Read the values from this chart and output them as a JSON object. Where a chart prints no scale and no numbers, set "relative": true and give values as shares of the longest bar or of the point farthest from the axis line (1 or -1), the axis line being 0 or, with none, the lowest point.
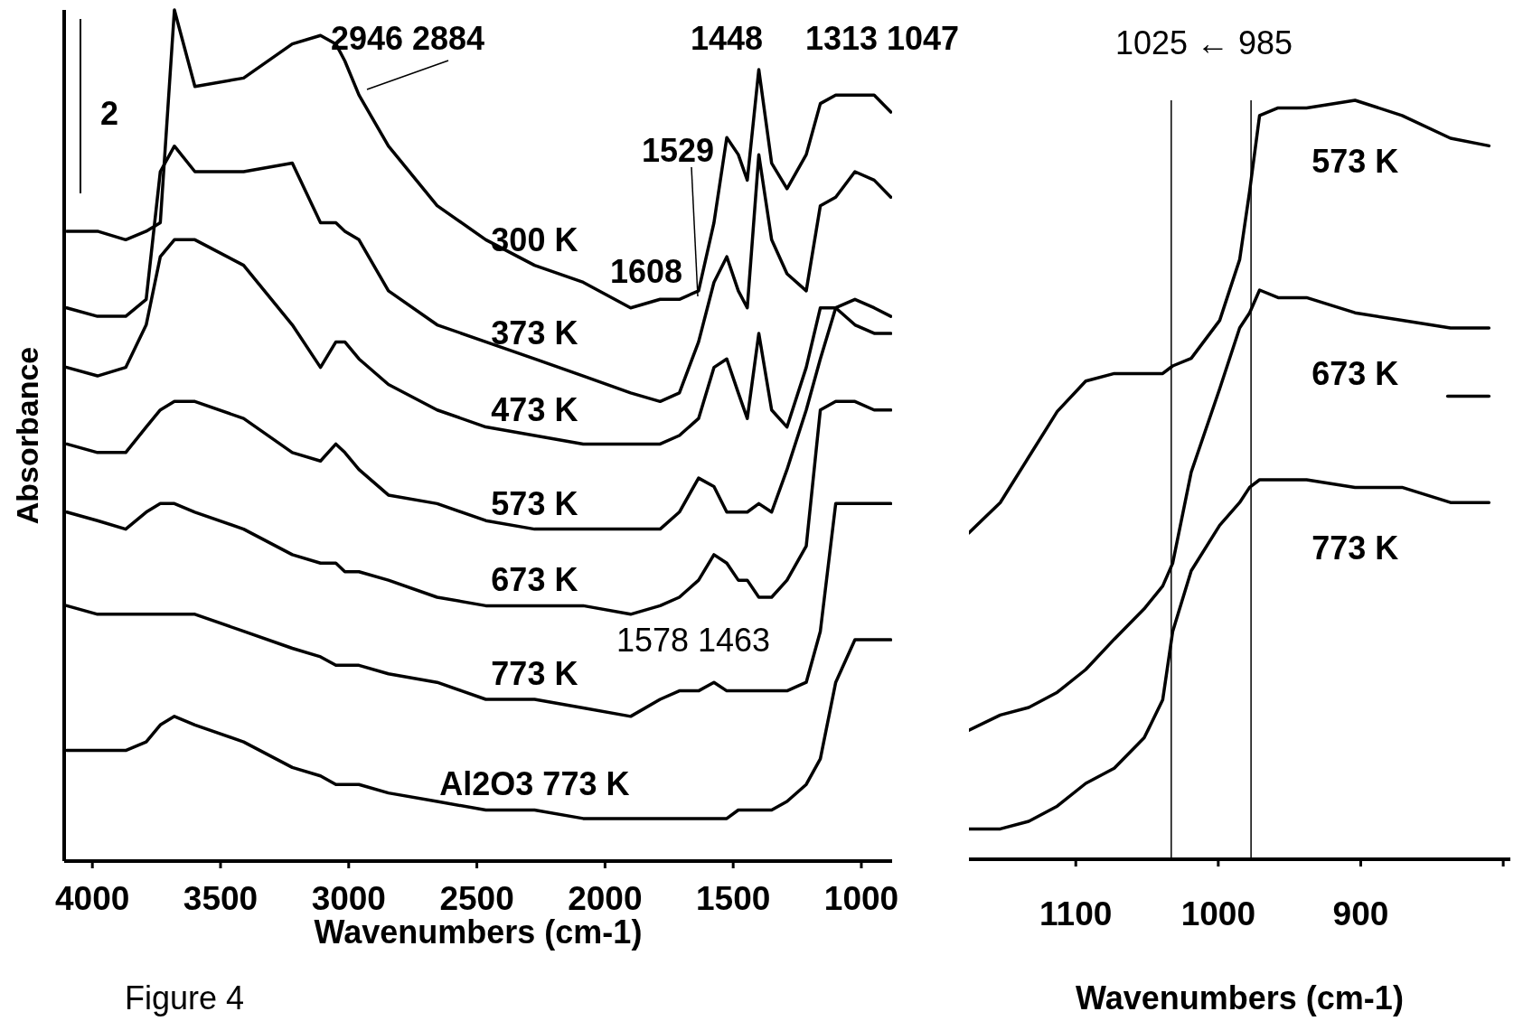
{
  "chart_data": [
    {
      "type": "line",
      "relative": true,
      "xlabel": "Wavenumbers (cm-1)",
      "ylabel": "Absorbance",
      "xlim": [
        4110,
        880
      ],
      "xticks": [
        4000,
        3500,
        3000,
        2500,
        2000,
        1500,
        1000
      ],
      "x": [
        4100,
        3980,
        3870,
        3790,
        3735,
        3680,
        3600,
        3410,
        3220,
        3110,
        3050,
        3015,
        2960,
        2845,
        2655,
        2465,
        2275,
        2085,
        1900,
        1785,
        1710,
        1635,
        1575,
        1525,
        1480,
        1445,
        1400,
        1350,
        1290,
        1215,
        1160,
        1100,
        1025,
        950,
        885
      ],
      "series": [
        {
          "name": "300 K",
          "color": "#000000",
          "values": [
            0.74,
            0.74,
            0.73,
            0.74,
            0.75,
            1,
            0.91,
            0.92,
            0.96,
            0.97,
            0.96,
            0.94,
            0.9,
            0.84,
            0.77,
            0.73,
            0.7,
            0.68,
            0.65,
            0.66,
            0.66,
            0.67,
            0.75,
            0.85,
            0.83,
            0.8,
            0.93,
            0.82,
            0.79,
            0.83,
            0.89,
            0.9,
            0.9,
            0.9,
            0.88
          ]
        },
        {
          "name": "373 K",
          "color": "#000000",
          "values": [
            0.65,
            0.64,
            0.64,
            0.66,
            0.81,
            0.84,
            0.81,
            0.81,
            0.82,
            0.75,
            0.75,
            0.74,
            0.73,
            0.67,
            0.63,
            0.61,
            0.59,
            0.57,
            0.55,
            0.54,
            0.55,
            0.61,
            0.68,
            0.71,
            0.67,
            0.65,
            0.83,
            0.73,
            0.69,
            0.67,
            0.77,
            0.78,
            0.81,
            0.8,
            0.78
          ]
        },
        {
          "name": "473 K",
          "color": "#000000",
          "values": [
            0.58,
            0.57,
            0.58,
            0.63,
            0.71,
            0.73,
            0.73,
            0.7,
            0.63,
            0.58,
            0.61,
            0.61,
            0.59,
            0.56,
            0.53,
            0.51,
            0.5,
            0.49,
            0.49,
            0.49,
            0.5,
            0.52,
            0.58,
            0.59,
            0.55,
            0.52,
            0.62,
            0.53,
            0.51,
            0.58,
            0.65,
            0.65,
            0.63,
            0.62,
            0.62
          ]
        },
        {
          "name": "573 K",
          "color": "#000000",
          "values": [
            0.49,
            0.48,
            0.48,
            0.51,
            0.53,
            0.54,
            0.54,
            0.52,
            0.48,
            0.47,
            0.49,
            0.48,
            0.46,
            0.43,
            0.42,
            0.4,
            0.39,
            0.39,
            0.39,
            0.39,
            0.41,
            0.45,
            0.44,
            0.41,
            0.41,
            0.41,
            0.42,
            0.41,
            0.46,
            0.53,
            0.59,
            0.65,
            0.66,
            0.65,
            0.64
          ]
        },
        {
          "name": "673 K",
          "color": "#000000",
          "values": [
            0.41,
            0.4,
            0.39,
            0.41,
            0.42,
            0.42,
            0.41,
            0.39,
            0.36,
            0.35,
            0.35,
            0.34,
            0.34,
            0.33,
            0.31,
            0.3,
            0.3,
            0.3,
            0.29,
            0.3,
            0.31,
            0.33,
            0.36,
            0.35,
            0.33,
            0.33,
            0.31,
            0.31,
            0.33,
            0.37,
            0.53,
            0.54,
            0.54,
            0.53,
            0.53
          ]
        },
        {
          "name": "773 K",
          "color": "#000000",
          "values": [
            0.3,
            0.29,
            0.29,
            0.29,
            0.29,
            0.29,
            0.29,
            0.27,
            0.25,
            0.24,
            0.23,
            0.23,
            0.23,
            0.22,
            0.21,
            0.19,
            0.19,
            0.18,
            0.17,
            0.19,
            0.2,
            0.2,
            0.21,
            0.2,
            0.2,
            0.2,
            0.2,
            0.2,
            0.2,
            0.21,
            0.27,
            0.42,
            0.42,
            0.42,
            0.42
          ]
        },
        {
          "name": "Al2O3 773 K",
          "color": "#000000",
          "values": [
            0.13,
            0.13,
            0.13,
            0.14,
            0.16,
            0.17,
            0.16,
            0.14,
            0.11,
            0.1,
            0.09,
            0.09,
            0.09,
            0.08,
            0.07,
            0.06,
            0.06,
            0.05,
            0.05,
            0.05,
            0.05,
            0.05,
            0.05,
            0.05,
            0.06,
            0.06,
            0.06,
            0.06,
            0.07,
            0.09,
            0.12,
            0.21,
            0.26,
            0.26,
            0.26
          ]
        }
      ],
      "annotations": [
        "2",
        "2946 2884",
        "1448",
        "1313 1047",
        "1529",
        "1608",
        "1578 1463",
        "Figure 4"
      ]
    },
    {
      "type": "line",
      "relative": true,
      "xlabel": "Wavenumbers (cm-1)",
      "xlim": [
        1175,
        795
      ],
      "xticks": [
        1100,
        1000,
        900,
        {
          "value": 800,
          "label": null
        }
      ],
      "x": [
        1175,
        1153,
        1133,
        1113,
        1093,
        1073,
        1052,
        1039,
        1032,
        1019,
        999,
        985,
        978,
        971,
        958,
        938,
        904,
        871,
        837,
        810
      ],
      "series": [
        {
          "name": "573 K",
          "color": "#000000",
          "values": [
            0.43,
            0.47,
            0.53,
            0.59,
            0.63,
            0.64,
            0.64,
            0.64,
            0.65,
            0.66,
            0.71,
            0.79,
            0.88,
            0.98,
            0.99,
            0.99,
            1,
            0.98,
            0.95,
            0.94
          ]
        },
        {
          "name": "673 K",
          "color": "#000000",
          "values": [
            0.17,
            0.19,
            0.2,
            0.22,
            0.25,
            0.29,
            0.33,
            0.36,
            0.39,
            0.51,
            0.62,
            0.7,
            0.72,
            0.75,
            0.74,
            0.74,
            0.72,
            0.71,
            0.7,
            0.7
          ]
        },
        {
          "name": "773 K",
          "color": "#000000",
          "values": [
            0.04,
            0.04,
            0.05,
            0.07,
            0.1,
            0.12,
            0.16,
            0.21,
            0.3,
            0.38,
            0.44,
            0.47,
            0.49,
            0.5,
            0.5,
            0.5,
            0.49,
            0.49,
            0.47,
            0.47
          ]
        },
        {
          "color": "#000000",
          "x": [
            839,
            810
          ],
          "values": [
            0.61,
            0.61
          ]
        }
      ],
      "ref_lines": [
        {
          "axis": "x",
          "value": 1033
        },
        {
          "axis": "x",
          "value": 977
        }
      ],
      "annotations": [
        "1025 ← 985"
      ]
    }
  ]
}
